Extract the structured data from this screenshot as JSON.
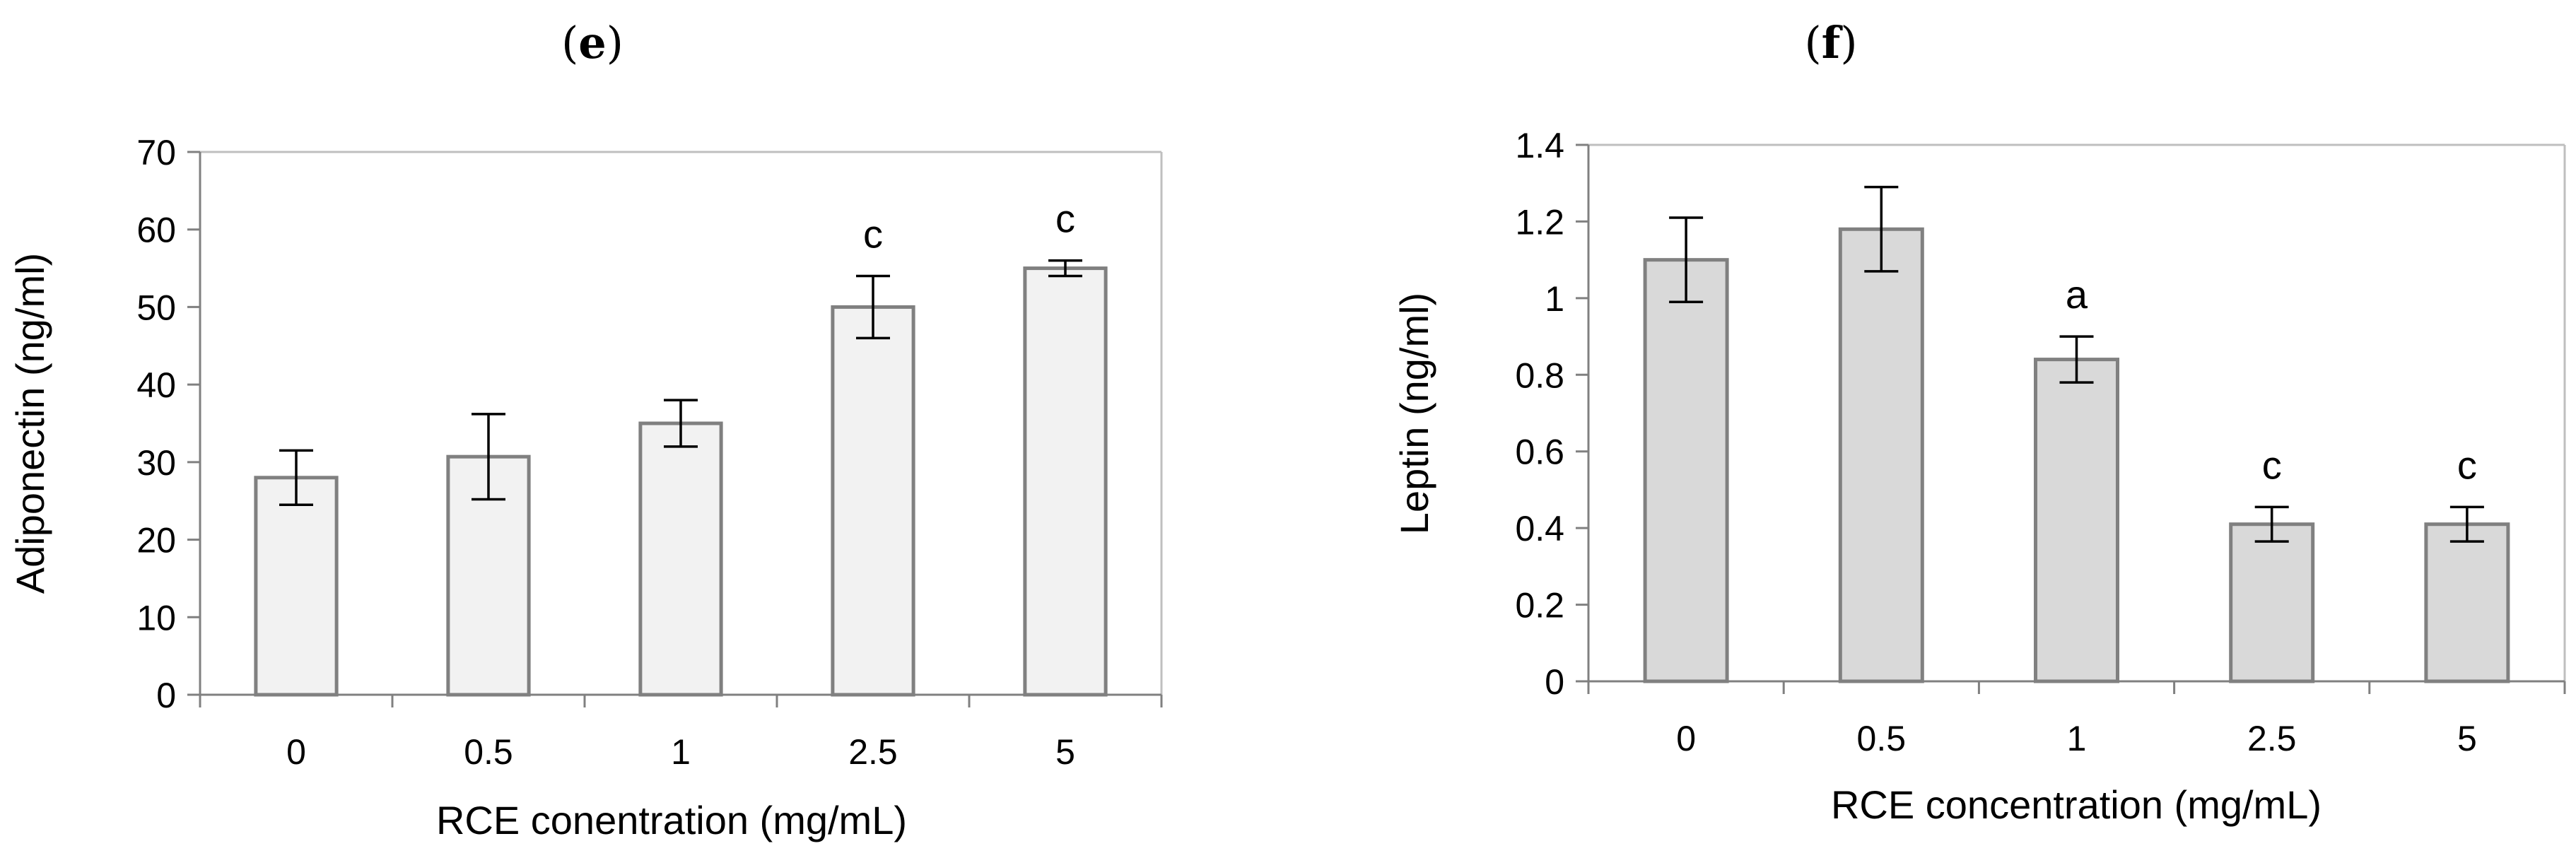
{
  "chart_data": [
    {
      "type": "bar",
      "panel": "e",
      "title": "",
      "categories": [
        "0",
        "0.5",
        "1",
        "2.5",
        "5"
      ],
      "values": [
        28,
        30.7,
        35,
        50,
        55
      ],
      "errors": [
        3.5,
        5.5,
        3,
        4,
        1
      ],
      "annotations": [
        "",
        "",
        "",
        "c",
        "c"
      ],
      "xlabel": "RCE conentration (mg/mL)",
      "ylabel": "Adiponectin (ng/ml)",
      "ylim": [
        0,
        70
      ],
      "yticks": [
        "0",
        "10",
        "20",
        "30",
        "40",
        "50",
        "60",
        "70"
      ],
      "bar_color": "#f2f2f2",
      "edge_color": "#808080",
      "grid": false
    },
    {
      "type": "bar",
      "panel": "f",
      "title": "",
      "categories": [
        "0",
        "0.5",
        "1",
        "2.5",
        "5"
      ],
      "values": [
        1.1,
        1.18,
        0.84,
        0.41,
        0.41
      ],
      "errors": [
        0.11,
        0.11,
        0.06,
        0.045,
        0.045
      ],
      "annotations": [
        "",
        "",
        "a",
        "c",
        "c"
      ],
      "xlabel": "RCE concentration (mg/mL)",
      "ylabel": "Leptin (ng/ml)",
      "ylim": [
        0,
        1.4
      ],
      "yticks": [
        "0",
        "0.2",
        "0.4",
        "0.6",
        "0.8",
        "1",
        "1.2",
        "1.4"
      ],
      "bar_color": "#d9d9d9",
      "edge_color": "#808080",
      "grid": false
    }
  ]
}
